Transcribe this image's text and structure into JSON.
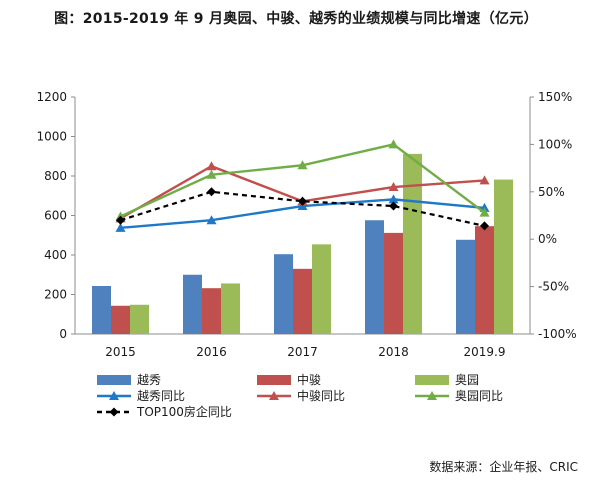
{
  "title": "图：2015-2019 年 9 月奥园、中骏、越秀的业绩规模与同比增速（亿元）",
  "source": "数据来源：企业年报、CRIC",
  "chart_data": {
    "type": "bar",
    "categories": [
      "2015",
      "2016",
      "2017",
      "2018",
      "2019.9"
    ],
    "y_left": {
      "ticks": [
        "0",
        "200",
        "400",
        "600",
        "800",
        "1000",
        "1200"
      ],
      "ylim": [
        0,
        1200
      ]
    },
    "y_right": {
      "ticks": [
        "-100%",
        "-50%",
        "0%",
        "50%",
        "100%",
        "150%"
      ],
      "ylim": [
        -100,
        150
      ]
    },
    "grid": false,
    "legend_position": "bottom",
    "bar_series": [
      {
        "name": "越秀",
        "color": "#4e81bd",
        "values": [
          243,
          300,
          404,
          576,
          477
        ]
      },
      {
        "name": "中骏",
        "color": "#c0504d",
        "values": [
          143,
          232,
          330,
          512,
          546
        ]
      },
      {
        "name": "奥园",
        "color": "#9bbb59",
        "values": [
          148,
          256,
          454,
          912,
          782
        ]
      }
    ],
    "line_series": [
      {
        "name": "越秀同比",
        "color": "#1f78c8",
        "marker": "triangle",
        "dash": false,
        "values": [
          12,
          20,
          35,
          42,
          33
        ]
      },
      {
        "name": "中骏同比",
        "color": "#c0504d",
        "marker": "triangle",
        "dash": false,
        "values": [
          22,
          77,
          40,
          55,
          62
        ]
      },
      {
        "name": "奥园同比",
        "color": "#70ad47",
        "marker": "triangle",
        "dash": false,
        "values": [
          24,
          68,
          78,
          100,
          28
        ]
      },
      {
        "name": "TOP100房企同比",
        "color": "#000000",
        "marker": "diamond",
        "dash": true,
        "values": [
          20,
          50,
          40,
          35,
          14
        ]
      }
    ]
  }
}
